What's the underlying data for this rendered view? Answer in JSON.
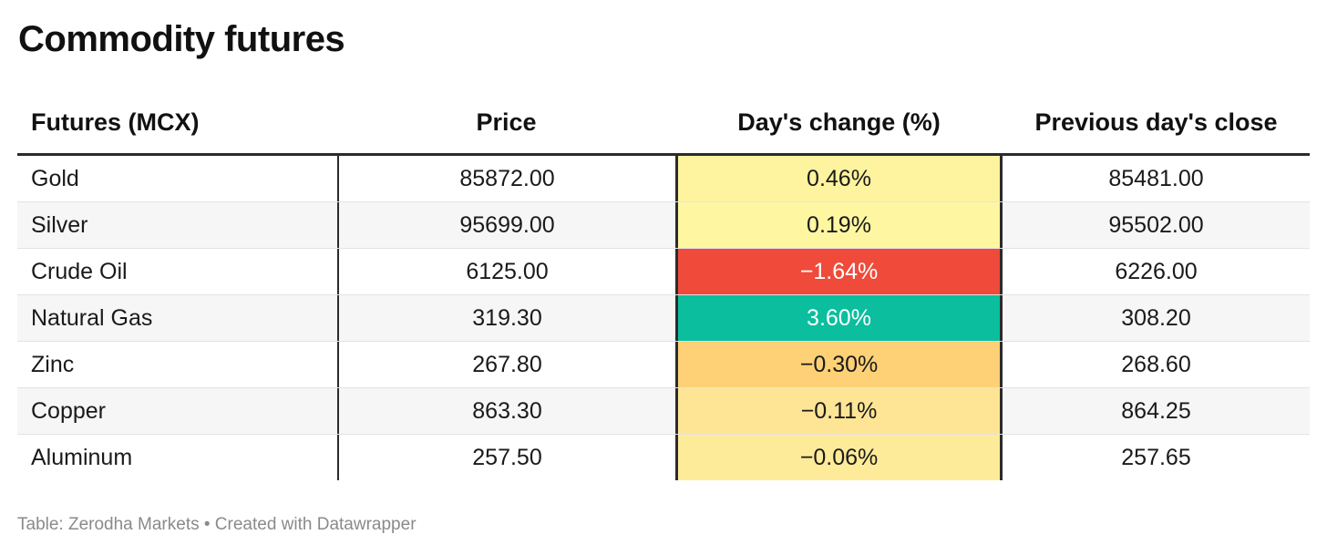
{
  "title": "Commodity futures",
  "columns": [
    "Futures (MCX)",
    "Price",
    "Day's change (%)",
    "Previous day's close"
  ],
  "rows": [
    {
      "name": "Gold",
      "price": "85872.00",
      "change": "0.46%",
      "prev": "85481.00",
      "change_color": "#fef39e",
      "change_text_light": false
    },
    {
      "name": "Silver",
      "price": "95699.00",
      "change": "0.19%",
      "prev": "95502.00",
      "change_color": "#fef6a0",
      "change_text_light": false
    },
    {
      "name": "Crude Oil",
      "price": "6125.00",
      "change": "−1.64%",
      "prev": "6226.00",
      "change_color": "#ef4a3a",
      "change_text_light": true
    },
    {
      "name": "Natural Gas",
      "price": "319.30",
      "change": "3.60%",
      "prev": "308.20",
      "change_color": "#0bbe9e",
      "change_text_light": true
    },
    {
      "name": "Zinc",
      "price": "267.80",
      "change": "−0.30%",
      "prev": "268.60",
      "change_color": "#fed176",
      "change_text_light": false
    },
    {
      "name": "Copper",
      "price": "863.30",
      "change": "−0.11%",
      "prev": "864.25",
      "change_color": "#fee596",
      "change_text_light": false
    },
    {
      "name": "Aluminum",
      "price": "257.50",
      "change": "−0.06%",
      "prev": "257.65",
      "change_color": "#feeb99",
      "change_text_light": false
    }
  ],
  "source": "Table: Zerodha Markets • Created with Datawrapper",
  "chart_data": {
    "type": "table",
    "title": "Commodity futures",
    "columns": [
      "Futures (MCX)",
      "Price",
      "Day's change (%)",
      "Previous day's close"
    ],
    "rows": [
      [
        "Gold",
        85872.0,
        0.46,
        85481.0
      ],
      [
        "Silver",
        95699.0,
        0.19,
        95502.0
      ],
      [
        "Crude Oil",
        6125.0,
        -1.64,
        6226.0
      ],
      [
        "Natural Gas",
        319.3,
        3.6,
        308.2
      ],
      [
        "Zinc",
        267.8,
        -0.3,
        268.6
      ],
      [
        "Copper",
        863.3,
        -0.11,
        864.25
      ],
      [
        "Aluminum",
        257.5,
        -0.06,
        257.65
      ]
    ],
    "heatmap_column": "Day's change (%)"
  }
}
